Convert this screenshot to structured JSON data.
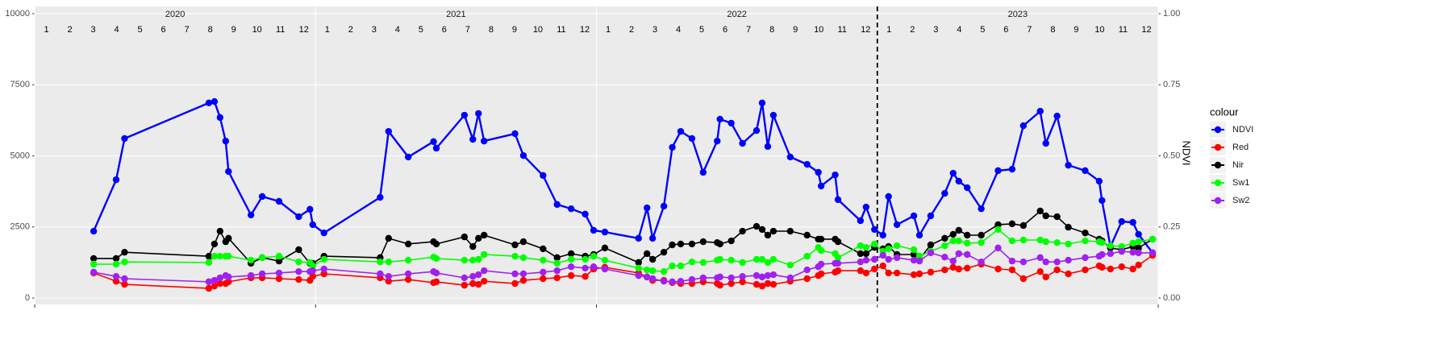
{
  "chart_data": {
    "type": "line",
    "facet_labels": [
      "2020",
      "2021",
      "2022",
      "2023"
    ],
    "months": [
      1,
      2,
      3,
      4,
      5,
      6,
      7,
      8,
      9,
      10,
      11,
      12
    ],
    "x": [
      2020.21,
      2020.29,
      2020.32,
      2020.62,
      2020.64,
      2020.66,
      2020.68,
      2020.69,
      2020.77,
      2020.81,
      2020.87,
      2020.94,
      2020.98,
      2020.99,
      2021.03,
      2021.23,
      2021.26,
      2021.33,
      2021.42,
      2021.43,
      2021.53,
      2021.56,
      2021.58,
      2021.6,
      2021.71,
      2021.74,
      2021.81,
      2021.86,
      2021.91,
      2021.96,
      2021.99,
      2022.03,
      2022.15,
      2022.18,
      2022.2,
      2022.24,
      2022.27,
      2022.3,
      2022.34,
      2022.38,
      2022.43,
      2022.44,
      2022.48,
      2022.52,
      2022.57,
      2022.59,
      2022.61,
      2022.63,
      2022.69,
      2022.75,
      2022.79,
      2022.8,
      2022.85,
      2022.86,
      2022.94,
      2022.96,
      2022.99,
      2023.02,
      2023.04,
      2023.07,
      2023.13,
      2023.15,
      2023.19,
      2023.24,
      2023.27,
      2023.29,
      2023.32,
      2023.37,
      2023.43,
      2023.48,
      2023.52,
      2023.58,
      2023.6,
      2023.64,
      2023.68,
      2023.74,
      2023.79,
      2023.8,
      2023.83,
      2023.87,
      2023.91,
      2023.93,
      2023.98
    ],
    "xlim": [
      2020,
      2024
    ],
    "xticks": [
      2020,
      2021,
      2022,
      2023,
      2024
    ],
    "vline": 2023,
    "ylim": [
      0,
      10000
    ],
    "yticks": [
      0,
      2500,
      5000,
      7500,
      10000
    ],
    "y2label": "NDVI",
    "y2lim": [
      0,
      1
    ],
    "y2ticks": [
      {
        "value": 0,
        "label": "0.00"
      },
      0.25,
      {
        "value": 0.5,
        "label": "0.50"
      },
      0.75,
      {
        "value": 1,
        "label": "1.00"
      }
    ],
    "grid": true,
    "legend_title": "colour",
    "legend_position": "right",
    "series": [
      {
        "name": "NDVI",
        "color": "#0000ff",
        "axis": "y2",
        "values": [
          0.235,
          0.416,
          0.561,
          0.686,
          0.691,
          0.635,
          0.552,
          0.445,
          0.292,
          0.357,
          0.34,
          0.286,
          0.312,
          0.258,
          0.229,
          0.354,
          0.586,
          0.496,
          0.55,
          0.527,
          0.643,
          0.558,
          0.649,
          0.552,
          0.578,
          0.501,
          0.431,
          0.329,
          0.314,
          0.295,
          0.238,
          0.232,
          0.21,
          0.317,
          0.21,
          0.323,
          0.53,
          0.586,
          0.561,
          0.442,
          0.552,
          0.629,
          0.615,
          0.544,
          0.589,
          0.686,
          0.533,
          0.643,
          0.496,
          0.47,
          0.442,
          0.394,
          0.433,
          0.346,
          0.272,
          0.32,
          0.241,
          0.221,
          0.357,
          0.258,
          0.289,
          0.221,
          0.289,
          0.368,
          0.439,
          0.411,
          0.388,
          0.314,
          0.448,
          0.453,
          0.606,
          0.657,
          0.544,
          0.64,
          0.467,
          0.448,
          0.411,
          0.343,
          0.181,
          0.269,
          0.266,
          0.224,
          0.159
        ]
      },
      {
        "name": "Red",
        "color": "#ff0000",
        "values": [
          880,
          590,
          480,
          340,
          420,
          510,
          510,
          570,
          710,
          710,
          680,
          650,
          620,
          760,
          850,
          710,
          590,
          650,
          540,
          570,
          450,
          510,
          480,
          590,
          510,
          620,
          680,
          710,
          790,
          760,
          1020,
          1080,
          880,
          740,
          620,
          620,
          540,
          510,
          510,
          570,
          510,
          450,
          510,
          570,
          480,
          420,
          510,
          480,
          590,
          680,
          790,
          850,
          910,
          960,
          960,
          880,
          1020,
          1130,
          880,
          880,
          820,
          850,
          910,
          990,
          1080,
          1020,
          1050,
          1190,
          1020,
          990,
          680,
          930,
          740,
          990,
          850,
          990,
          1130,
          1080,
          1020,
          1100,
          1020,
          1160,
          1500
        ]
      },
      {
        "name": "Nir",
        "color": "#000000",
        "values": [
          1390,
          1390,
          1610,
          1470,
          1900,
          2350,
          1980,
          2100,
          1220,
          1420,
          1300,
          1700,
          1220,
          1220,
          1470,
          1420,
          2100,
          1900,
          1980,
          1900,
          2150,
          1810,
          2100,
          2210,
          1870,
          1980,
          1730,
          1420,
          1560,
          1470,
          1530,
          1760,
          1250,
          1560,
          1360,
          1610,
          1870,
          1900,
          1900,
          1980,
          1950,
          1900,
          2010,
          2350,
          2520,
          2410,
          2210,
          2350,
          2350,
          2210,
          2070,
          2070,
          2070,
          1980,
          1560,
          1560,
          1780,
          1730,
          1810,
          1530,
          1530,
          1360,
          1870,
          2100,
          2240,
          2380,
          2210,
          2210,
          2580,
          2610,
          2550,
          3060,
          2890,
          2860,
          2490,
          2290,
          2070,
          2010,
          1760,
          1700,
          1810,
          1760,
          2070
        ]
      },
      {
        "name": "Sw1",
        "color": "#00ff00",
        "values": [
          1190,
          1190,
          1270,
          1250,
          1470,
          1470,
          1470,
          1470,
          1330,
          1420,
          1470,
          1270,
          1250,
          1130,
          1360,
          1270,
          1270,
          1330,
          1440,
          1390,
          1330,
          1330,
          1360,
          1530,
          1470,
          1420,
          1330,
          1220,
          1360,
          1360,
          1470,
          1330,
          1050,
          990,
          960,
          930,
          1130,
          1130,
          1270,
          1250,
          1330,
          1360,
          1330,
          1250,
          1360,
          1360,
          1250,
          1360,
          1160,
          1470,
          1780,
          1670,
          1560,
          1420,
          1840,
          1780,
          1900,
          1640,
          1730,
          1840,
          1700,
          1470,
          1640,
          1840,
          2010,
          2010,
          1930,
          1950,
          2410,
          2010,
          2040,
          2040,
          1980,
          1950,
          1900,
          2010,
          1980,
          1950,
          1840,
          1810,
          1930,
          1980,
          2070
        ]
      },
      {
        "name": "Sw2",
        "color": "#a020f0",
        "values": [
          910,
          760,
          680,
          570,
          620,
          710,
          790,
          740,
          790,
          850,
          880,
          930,
          930,
          960,
          1020,
          850,
          760,
          850,
          930,
          880,
          710,
          760,
          820,
          960,
          850,
          850,
          910,
          960,
          1100,
          1050,
          1100,
          1020,
          790,
          740,
          680,
          590,
          570,
          590,
          650,
          710,
          710,
          740,
          710,
          760,
          790,
          740,
          790,
          820,
          710,
          990,
          1100,
          1190,
          1220,
          1220,
          1270,
          1330,
          1360,
          1500,
          1360,
          1420,
          1330,
          1300,
          1590,
          1440,
          1300,
          1560,
          1530,
          1270,
          1760,
          1300,
          1270,
          1420,
          1270,
          1270,
          1330,
          1420,
          1470,
          1530,
          1560,
          1640,
          1610,
          1590,
          1590
        ]
      }
    ]
  }
}
